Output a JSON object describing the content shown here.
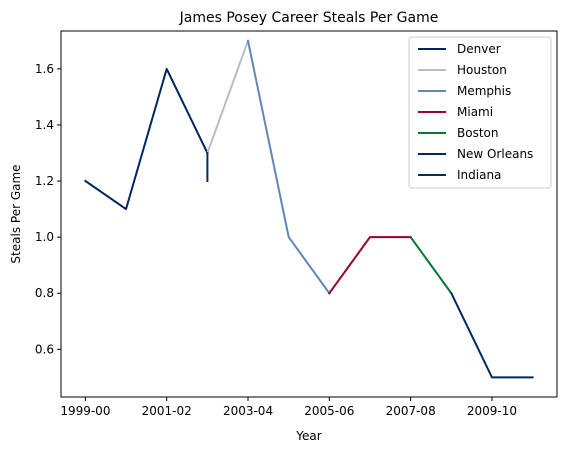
{
  "chart_data": {
    "type": "line",
    "title": "James Posey Career Steals Per Game",
    "xlabel": "Year",
    "ylabel": "Steals Per Game",
    "x_ticks": [
      "1999-00",
      "2001-02",
      "2003-04",
      "2005-06",
      "2007-08",
      "2009-10"
    ],
    "y_ticks": [
      "0.6",
      "0.8",
      "1.0",
      "1.2",
      "1.4",
      "1.6"
    ],
    "xlim": [
      -0.6,
      11.6
    ],
    "ylim": [
      0.43,
      1.735
    ],
    "grid": false,
    "legend_position": "top-right",
    "series": [
      {
        "name": "Denver",
        "color": "#00275d",
        "points": [
          [
            0,
            1.2
          ],
          [
            1,
            1.1
          ],
          [
            2,
            1.6
          ],
          [
            3,
            1.3
          ]
        ]
      },
      {
        "name": "Houston",
        "color": "#bdbdbd",
        "points": [
          [
            3,
            1.3
          ],
          [
            4,
            1.7
          ]
        ]
      },
      {
        "name": "Memphis",
        "color": "#6287b5",
        "points": [
          [
            4,
            1.7
          ],
          [
            5,
            1.0
          ],
          [
            6,
            0.8
          ]
        ]
      },
      {
        "name": "Miami",
        "color": "#98002e",
        "points": [
          [
            6,
            0.8
          ],
          [
            7,
            1.0
          ],
          [
            8,
            1.0
          ]
        ]
      },
      {
        "name": "Boston",
        "color": "#007a33",
        "points": [
          [
            8,
            1.0
          ],
          [
            9,
            0.8
          ]
        ]
      },
      {
        "name": "New Orleans",
        "color": "#002b5c",
        "points": [
          [
            9,
            0.8
          ],
          [
            10,
            0.5
          ],
          [
            11,
            0.5
          ]
        ]
      },
      {
        "name": "Indiana",
        "color": "#002d62",
        "points": [
          [
            3,
            1.3
          ],
          [
            3,
            1.2
          ]
        ]
      }
    ]
  }
}
